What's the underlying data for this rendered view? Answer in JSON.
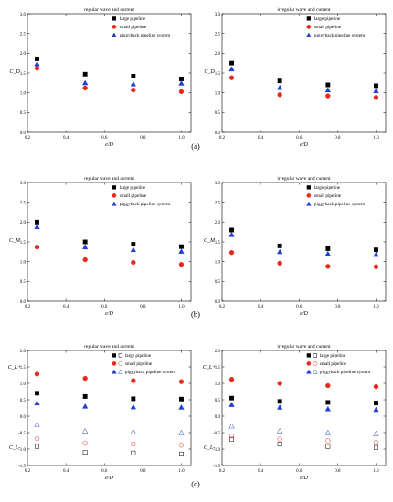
{
  "panel_labels": [
    "(a)",
    "(b)",
    "(c)"
  ],
  "colors": {
    "large": "#000000",
    "small": "#e8291c",
    "piggyback": "#1f3fd6"
  },
  "chart_data": [
    {
      "type": "scatter",
      "title": "regular wave and current",
      "xlabel": "e/D",
      "ylabel": "C_D",
      "xlim": [
        0.2,
        1.05
      ],
      "ylim": [
        0,
        3.0
      ],
      "xticks": [
        0.2,
        0.4,
        0.6,
        0.8,
        1.0
      ],
      "yticks": [
        0,
        0.5,
        1.0,
        1.5,
        2.0,
        2.5,
        3.0
      ],
      "legend_position": "top-right",
      "series": [
        {
          "name": "large pipeline",
          "marker": "square",
          "x": [
            0.25,
            0.5,
            0.75,
            1.0
          ],
          "y": [
            1.86,
            1.47,
            1.42,
            1.35
          ]
        },
        {
          "name": "small pipeline",
          "marker": "circle",
          "x": [
            0.25,
            0.5,
            0.75,
            1.0
          ],
          "y": [
            1.62,
            1.12,
            1.07,
            1.03
          ]
        },
        {
          "name": "piggyback pipeline system",
          "marker": "triangle",
          "x": [
            0.25,
            0.5,
            0.75,
            1.0
          ],
          "y": [
            1.73,
            1.25,
            1.22,
            1.24
          ]
        }
      ]
    },
    {
      "type": "scatter",
      "title": "irregular wave and current",
      "xlabel": "e/D",
      "ylabel": "C_D",
      "xlim": [
        0.2,
        1.05
      ],
      "ylim": [
        0,
        3.0
      ],
      "xticks": [
        0.2,
        0.4,
        0.6,
        0.8,
        1.0
      ],
      "yticks": [
        0,
        0.5,
        1.0,
        1.5,
        2.0,
        2.5,
        3.0
      ],
      "legend_position": "top-right",
      "series": [
        {
          "name": "large pipeline",
          "marker": "square",
          "x": [
            0.25,
            0.5,
            0.75,
            1.0
          ],
          "y": [
            1.75,
            1.3,
            1.2,
            1.18
          ]
        },
        {
          "name": "small pipeline",
          "marker": "circle",
          "x": [
            0.25,
            0.5,
            0.75,
            1.0
          ],
          "y": [
            1.38,
            0.95,
            0.92,
            0.88
          ]
        },
        {
          "name": "piggyback pipeline system",
          "marker": "triangle",
          "x": [
            0.25,
            0.5,
            0.75,
            1.0
          ],
          "y": [
            1.6,
            1.13,
            1.07,
            1.05
          ]
        }
      ]
    },
    {
      "type": "scatter",
      "title": "regular wave and current",
      "xlabel": "e/D",
      "ylabel": "C_M",
      "xlim": [
        0.2,
        1.05
      ],
      "ylim": [
        0,
        3.0
      ],
      "xticks": [
        0.2,
        0.4,
        0.6,
        0.8,
        1.0
      ],
      "yticks": [
        0,
        0.5,
        1.0,
        1.5,
        2.0,
        2.5,
        3.0
      ],
      "legend_position": "top-right",
      "series": [
        {
          "name": "large pipeline",
          "marker": "square",
          "x": [
            0.25,
            0.5,
            0.75,
            1.0
          ],
          "y": [
            2.0,
            1.5,
            1.44,
            1.38
          ]
        },
        {
          "name": "small pipeline",
          "marker": "circle",
          "x": [
            0.25,
            0.5,
            0.75,
            1.0
          ],
          "y": [
            1.37,
            1.05,
            0.98,
            0.93
          ]
        },
        {
          "name": "piggyback pipeline system",
          "marker": "triangle",
          "x": [
            0.25,
            0.5,
            0.75,
            1.0
          ],
          "y": [
            1.88,
            1.37,
            1.3,
            1.26
          ]
        }
      ]
    },
    {
      "type": "scatter",
      "title": "irregular wave and current",
      "xlabel": "e/D",
      "ylabel": "C_M",
      "xlim": [
        0.2,
        1.05
      ],
      "ylim": [
        0,
        3.0
      ],
      "xticks": [
        0.2,
        0.4,
        0.6,
        0.8,
        1.0
      ],
      "yticks": [
        0,
        0.5,
        1.0,
        1.5,
        2.0,
        2.5,
        3.0
      ],
      "legend_position": "top-right",
      "series": [
        {
          "name": "large pipeline",
          "marker": "square",
          "x": [
            0.25,
            0.5,
            0.75,
            1.0
          ],
          "y": [
            1.8,
            1.4,
            1.33,
            1.3
          ]
        },
        {
          "name": "small pipeline",
          "marker": "circle",
          "x": [
            0.25,
            0.5,
            0.75,
            1.0
          ],
          "y": [
            1.23,
            0.96,
            0.88,
            0.87
          ]
        },
        {
          "name": "piggyback pipeline system",
          "marker": "triangle",
          "x": [
            0.25,
            0.5,
            0.75,
            1.0
          ],
          "y": [
            1.68,
            1.25,
            1.2,
            1.18
          ]
        }
      ]
    },
    {
      "type": "scatter",
      "title": "regular wave and current",
      "xlabel": "e/D",
      "ylabel_top": "C_L+",
      "ylabel_bottom": "C_L-",
      "xlim": [
        0.2,
        1.05
      ],
      "ylim": [
        -1.5,
        2.0
      ],
      "xticks": [
        0.2,
        0.4,
        0.6,
        0.8,
        1.0
      ],
      "yticks": [
        -1.5,
        -1.0,
        -0.5,
        0.0,
        0.5,
        1.0,
        1.5,
        2.0
      ],
      "legend_position": "top-right",
      "series": [
        {
          "name": "large pipeline",
          "marker": "square",
          "x": [
            0.25,
            0.5,
            0.75,
            1.0
          ],
          "y": [
            0.7,
            0.6,
            0.53,
            0.52
          ]
        },
        {
          "name": "small pipeline",
          "marker": "circle",
          "x": [
            0.25,
            0.5,
            0.75,
            1.0
          ],
          "y": [
            1.28,
            1.15,
            1.08,
            1.05
          ]
        },
        {
          "name": "piggyback pipeline system",
          "marker": "triangle",
          "x": [
            0.25,
            0.5,
            0.75,
            1.0
          ],
          "y": [
            0.4,
            0.3,
            0.28,
            0.27
          ]
        },
        {
          "name": "",
          "marker": "square-open",
          "x": [
            0.25,
            0.5,
            0.75,
            1.0
          ],
          "y": [
            -0.92,
            -1.1,
            -1.12,
            -1.15
          ]
        },
        {
          "name": "",
          "marker": "circle-open",
          "x": [
            0.25,
            0.5,
            0.75,
            1.0
          ],
          "y": [
            -0.68,
            -0.82,
            -0.85,
            -0.88
          ]
        },
        {
          "name": "",
          "marker": "triangle-open",
          "x": [
            0.25,
            0.5,
            0.75,
            1.0
          ],
          "y": [
            -0.25,
            -0.45,
            -0.48,
            -0.5
          ]
        }
      ]
    },
    {
      "type": "scatter",
      "title": "irregular wave and current",
      "xlabel": "e/D",
      "ylabel_top": "C_L+",
      "ylabel_bottom": "C_L-",
      "xlim": [
        0.2,
        1.05
      ],
      "ylim": [
        -1.5,
        2.0
      ],
      "xticks": [
        0.2,
        0.4,
        0.6,
        0.8,
        1.0
      ],
      "yticks": [
        -1.5,
        -1.0,
        -0.5,
        0.0,
        0.5,
        1.0,
        1.5,
        2.0
      ],
      "legend_position": "top-right",
      "series": [
        {
          "name": "large pipeline",
          "marker": "square",
          "x": [
            0.25,
            0.5,
            0.75,
            1.0
          ],
          "y": [
            0.55,
            0.45,
            0.42,
            0.4
          ]
        },
        {
          "name": "small pipeline",
          "marker": "circle",
          "x": [
            0.25,
            0.5,
            0.75,
            1.0
          ],
          "y": [
            1.12,
            1.0,
            0.93,
            0.9
          ]
        },
        {
          "name": "piggyback pipeline system",
          "marker": "triangle",
          "x": [
            0.25,
            0.5,
            0.75,
            1.0
          ],
          "y": [
            0.35,
            0.27,
            0.22,
            0.2
          ]
        },
        {
          "name": "",
          "marker": "square-open",
          "x": [
            0.25,
            0.5,
            0.75,
            1.0
          ],
          "y": [
            -0.7,
            -0.85,
            -0.92,
            -0.95
          ]
        },
        {
          "name": "",
          "marker": "circle-open",
          "x": [
            0.25,
            0.5,
            0.75,
            1.0
          ],
          "y": [
            -0.6,
            -0.7,
            -0.75,
            -0.8
          ]
        },
        {
          "name": "",
          "marker": "triangle-open",
          "x": [
            0.25,
            0.5,
            0.75,
            1.0
          ],
          "y": [
            -0.3,
            -0.45,
            -0.5,
            -0.53
          ]
        }
      ]
    }
  ]
}
